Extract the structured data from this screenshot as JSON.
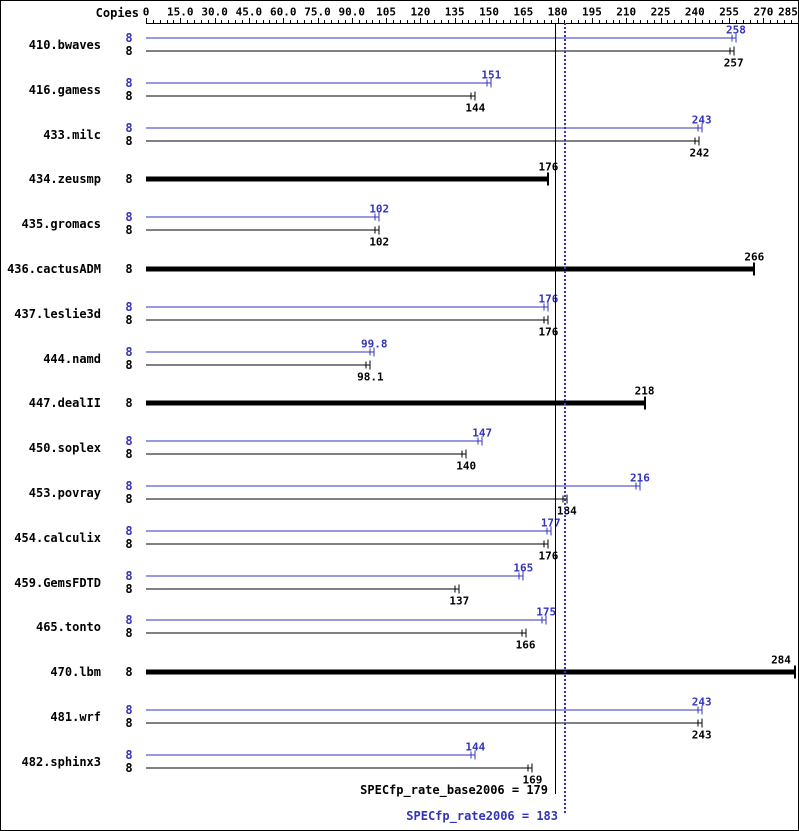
{
  "chart_data": {
    "type": "bar",
    "orientation": "horizontal",
    "copies_header": "Copies",
    "colors": {
      "peak": "#3333bb",
      "base": "#000000"
    },
    "x_axis": {
      "min": 0,
      "max": 285,
      "minor_tick_step": 3,
      "ticks": [
        {
          "value": 0,
          "label": "0"
        },
        {
          "value": 15,
          "label": "15.0"
        },
        {
          "value": 30,
          "label": "30.0"
        },
        {
          "value": 45,
          "label": "45.0"
        },
        {
          "value": 60,
          "label": "60.0"
        },
        {
          "value": 75,
          "label": "75.0"
        },
        {
          "value": 90,
          "label": "90.0"
        },
        {
          "value": 105,
          "label": "105"
        },
        {
          "value": 120,
          "label": "120"
        },
        {
          "value": 135,
          "label": "135"
        },
        {
          "value": 150,
          "label": "150"
        },
        {
          "value": 165,
          "label": "165"
        },
        {
          "value": 180,
          "label": "180"
        },
        {
          "value": 195,
          "label": "195"
        },
        {
          "value": 210,
          "label": "210"
        },
        {
          "value": 225,
          "label": "225"
        },
        {
          "value": 240,
          "label": "240"
        },
        {
          "value": 255,
          "label": "255"
        },
        {
          "value": 270,
          "label": "270"
        },
        {
          "value": 285,
          "label": "285"
        }
      ]
    },
    "benchmarks": [
      {
        "name": "410.bwaves",
        "copies": "8",
        "peak": {
          "value": 258,
          "label": "258"
        },
        "base": {
          "value": 257,
          "label": "257"
        }
      },
      {
        "name": "416.gamess",
        "copies": "8",
        "peak": {
          "value": 151,
          "label": "151"
        },
        "base": {
          "value": 144,
          "label": "144"
        }
      },
      {
        "name": "433.milc",
        "copies": "8",
        "peak": {
          "value": 243,
          "label": "243"
        },
        "base": {
          "value": 242,
          "label": "242"
        }
      },
      {
        "name": "434.zeusmp",
        "copies": "8",
        "single": {
          "value": 176,
          "label": "176"
        }
      },
      {
        "name": "435.gromacs",
        "copies": "8",
        "peak": {
          "value": 102,
          "label": "102"
        },
        "base": {
          "value": 102,
          "label": "102"
        }
      },
      {
        "name": "436.cactusADM",
        "copies": "8",
        "single": {
          "value": 266,
          "label": "266"
        }
      },
      {
        "name": "437.leslie3d",
        "copies": "8",
        "peak": {
          "value": 176,
          "label": "176"
        },
        "base": {
          "value": 176,
          "label": "176"
        }
      },
      {
        "name": "444.namd",
        "copies": "8",
        "peak": {
          "value": 99.8,
          "label": "99.8"
        },
        "base": {
          "value": 98.1,
          "label": "98.1"
        }
      },
      {
        "name": "447.dealII",
        "copies": "8",
        "single": {
          "value": 218,
          "label": "218"
        }
      },
      {
        "name": "450.soplex",
        "copies": "8",
        "peak": {
          "value": 147,
          "label": "147"
        },
        "base": {
          "value": 140,
          "label": "140"
        }
      },
      {
        "name": "453.povray",
        "copies": "8",
        "peak": {
          "value": 216,
          "label": "216"
        },
        "base": {
          "value": 184,
          "label": "184"
        }
      },
      {
        "name": "454.calculix",
        "copies": "8",
        "peak": {
          "value": 177,
          "label": "177"
        },
        "base": {
          "value": 176,
          "label": "176"
        }
      },
      {
        "name": "459.GemsFDTD",
        "copies": "8",
        "peak": {
          "value": 165,
          "label": "165"
        },
        "base": {
          "value": 137,
          "label": "137"
        }
      },
      {
        "name": "465.tonto",
        "copies": "8",
        "peak": {
          "value": 175,
          "label": "175"
        },
        "base": {
          "value": 166,
          "label": "166"
        }
      },
      {
        "name": "470.lbm",
        "copies": "8",
        "single": {
          "value": 284,
          "label": "284"
        }
      },
      {
        "name": "481.wrf",
        "copies": "8",
        "peak": {
          "value": 243,
          "label": "243"
        },
        "base": {
          "value": 243,
          "label": "243"
        }
      },
      {
        "name": "482.sphinx3",
        "copies": "8",
        "peak": {
          "value": 144,
          "label": "144"
        },
        "base": {
          "value": 169,
          "label": "169"
        }
      }
    ],
    "reference_lines": [
      {
        "label": "SPECfp_rate_base2006 = 179",
        "value": 179,
        "style": "solid",
        "color": "#000000"
      },
      {
        "label": "SPECfp_rate2006 = 183",
        "value": 183,
        "style": "dotted",
        "color": "#3333bb"
      }
    ]
  }
}
